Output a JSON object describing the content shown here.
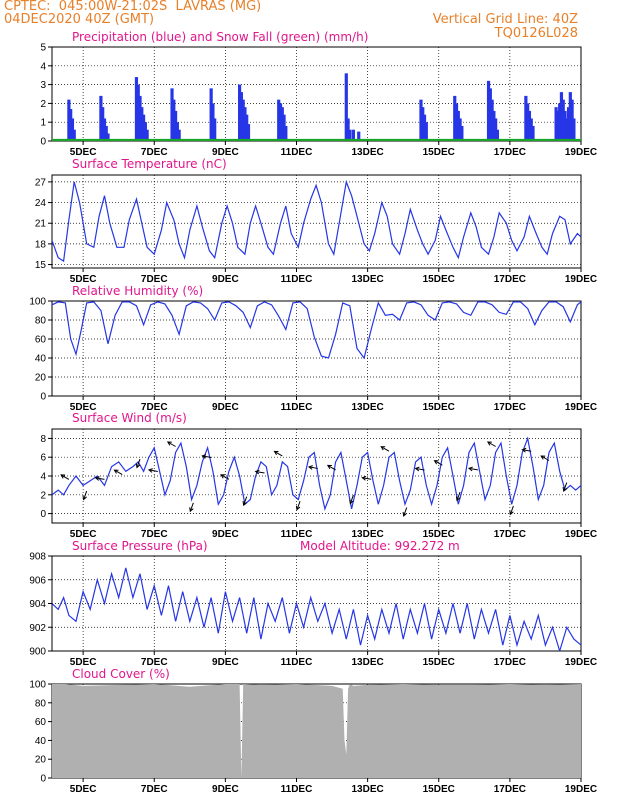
{
  "header": {
    "line1": "CPTEC:  045:00W-21:02S  LAVRAS (MG)",
    "line2": "04DEC2020 40Z (GMT)",
    "right1": "Vertical Grid Line: 40Z",
    "right2": "TQ0126L028"
  },
  "colors": {
    "header_text": "#e8802a",
    "panel_title": "#e0168c",
    "series_line": "#2636e6",
    "precip_bar": "#2636e6",
    "snow_line": "#19a628",
    "cloud_fill": "#b0b0b0",
    "grid": "#000000"
  },
  "x_axis": {
    "start_day": 4,
    "start_hour": 3,
    "end_day": 19,
    "end_hour": 0,
    "tick_labels": [
      "5DEC",
      "7DEC",
      "9DEC",
      "11DEC",
      "13DEC",
      "15DEC",
      "17DEC",
      "19DEC"
    ],
    "tick_days": [
      5,
      7,
      9,
      11,
      13,
      15,
      17,
      19
    ]
  },
  "chart_data": [
    {
      "type": "bar",
      "name": "precipitation",
      "title": "Precipitation (blue) and Snow Fall (green) (mm/h)",
      "ylim": [
        0,
        5
      ],
      "yticks": [
        0,
        1,
        2,
        3,
        4,
        5
      ],
      "grid": true,
      "x_unit": "day of December 2020 (decimal)",
      "series": [
        {
          "name": "Precipitation",
          "x": [
            4.6,
            4.65,
            4.7,
            4.75,
            5.5,
            5.55,
            5.6,
            5.65,
            5.7,
            6.5,
            6.55,
            6.6,
            6.65,
            6.7,
            6.75,
            6.8,
            7.5,
            7.55,
            7.6,
            7.65,
            7.7,
            8.6,
            8.65,
            8.7,
            9.4,
            9.45,
            9.5,
            9.55,
            9.6,
            9.65,
            10.5,
            10.55,
            10.6,
            10.65,
            10.7,
            12.4,
            12.45,
            12.5,
            12.6,
            12.75,
            14.5,
            14.55,
            14.6,
            14.65,
            15.45,
            15.5,
            15.55,
            15.6,
            15.65,
            16.4,
            16.45,
            16.5,
            16.55,
            16.6,
            16.65,
            17.45,
            17.5,
            17.55,
            17.6,
            17.65,
            18.3,
            18.35,
            18.4,
            18.45,
            18.5,
            18.55,
            18.6,
            18.65,
            18.7,
            18.75,
            18.8
          ],
          "values": [
            2.2,
            1.7,
            1.2,
            0.6,
            2.4,
            1.8,
            1.2,
            0.8,
            0.4,
            3.4,
            3.0,
            2.4,
            1.8,
            1.4,
            1.0,
            0.6,
            2.8,
            2.2,
            1.6,
            1.0,
            0.6,
            2.8,
            2.0,
            1.2,
            3.0,
            2.6,
            2.2,
            1.8,
            1.4,
            0.9,
            2.2,
            2.0,
            1.8,
            1.4,
            0.8,
            3.6,
            1.2,
            0.6,
            0.6,
            0.5,
            2.2,
            1.8,
            1.4,
            1.0,
            2.4,
            2.0,
            1.6,
            1.2,
            0.8,
            3.2,
            2.8,
            2.2,
            1.6,
            1.2,
            0.6,
            2.4,
            2.0,
            1.6,
            1.2,
            0.8,
            1.8,
            1.6,
            2.0,
            2.6,
            2.2,
            1.6,
            1.2,
            1.8,
            2.6,
            2.2,
            1.2
          ]
        },
        {
          "name": "Snow Fall",
          "x": [
            4.125,
            19.0
          ],
          "values": [
            0,
            0
          ]
        }
      ]
    },
    {
      "type": "line",
      "name": "surface-temperature",
      "title": "Surface Temperature (nC)",
      "ylim": [
        14.5,
        28
      ],
      "yticks": [
        15,
        18,
        21,
        24,
        27
      ],
      "grid": true,
      "x_unit": "day of December 2020 (decimal)",
      "series": [
        {
          "name": "Temperature",
          "x": [
            4.125,
            4.3,
            4.45,
            4.6,
            4.75,
            4.9,
            5.1,
            5.3,
            5.45,
            5.6,
            5.75,
            5.95,
            6.15,
            6.3,
            6.5,
            6.65,
            6.8,
            7.0,
            7.2,
            7.35,
            7.55,
            7.7,
            7.85,
            8.0,
            8.2,
            8.35,
            8.55,
            8.7,
            8.9,
            9.05,
            9.2,
            9.35,
            9.55,
            9.7,
            9.85,
            10.0,
            10.2,
            10.35,
            10.55,
            10.7,
            10.85,
            11.05,
            11.2,
            11.4,
            11.55,
            11.7,
            11.9,
            12.05,
            12.2,
            12.4,
            12.55,
            12.7,
            12.9,
            13.05,
            13.2,
            13.4,
            13.55,
            13.7,
            13.9,
            14.05,
            14.2,
            14.4,
            14.55,
            14.7,
            14.9,
            15.05,
            15.2,
            15.4,
            15.55,
            15.7,
            15.9,
            16.05,
            16.2,
            16.4,
            16.55,
            16.7,
            16.9,
            17.05,
            17.2,
            17.4,
            17.55,
            17.7,
            17.9,
            18.05,
            18.2,
            18.4,
            18.55,
            18.7,
            18.9,
            19.0
          ],
          "values": [
            18.5,
            16.0,
            15.5,
            21.5,
            27.0,
            24.0,
            18.0,
            17.5,
            22.0,
            25.0,
            21.0,
            17.5,
            17.5,
            21.5,
            24.5,
            21.0,
            17.5,
            16.5,
            20.0,
            24.0,
            21.5,
            18.0,
            16.0,
            20.0,
            23.5,
            20.5,
            17.0,
            16.0,
            21.0,
            23.5,
            21.0,
            17.5,
            16.5,
            21.0,
            23.5,
            21.0,
            17.5,
            16.5,
            21.0,
            23.5,
            19.5,
            17.5,
            21.0,
            24.5,
            26.5,
            24.0,
            18.0,
            16.5,
            21.0,
            27.0,
            25.0,
            22.0,
            18.0,
            17.0,
            19.5,
            24.0,
            22.0,
            18.0,
            16.5,
            19.5,
            23.0,
            20.0,
            18.0,
            16.5,
            18.5,
            22.0,
            20.0,
            17.5,
            16.0,
            19.0,
            22.5,
            20.5,
            17.5,
            16.5,
            19.0,
            22.5,
            21.0,
            18.5,
            17.0,
            19.0,
            22.0,
            20.0,
            17.5,
            16.5,
            19.5,
            22.0,
            21.5,
            18.0,
            19.5,
            19.0
          ]
        }
      ]
    },
    {
      "type": "line",
      "name": "relative-humidity",
      "title": "Relative Humidity (%)",
      "ylim": [
        0,
        100
      ],
      "yticks": [
        0,
        20,
        40,
        60,
        80,
        100
      ],
      "grid": true,
      "x_unit": "day of December 2020 (decimal)",
      "series": [
        {
          "name": "Relative Humidity",
          "x": [
            4.125,
            4.3,
            4.5,
            4.65,
            4.8,
            4.95,
            5.1,
            5.3,
            5.5,
            5.7,
            5.9,
            6.1,
            6.3,
            6.5,
            6.7,
            6.9,
            7.1,
            7.3,
            7.5,
            7.7,
            7.9,
            8.1,
            8.3,
            8.5,
            8.7,
            8.9,
            9.1,
            9.3,
            9.5,
            9.7,
            9.9,
            10.1,
            10.3,
            10.5,
            10.7,
            10.9,
            11.1,
            11.3,
            11.5,
            11.7,
            11.9,
            12.1,
            12.3,
            12.5,
            12.7,
            12.9,
            13.1,
            13.3,
            13.5,
            13.7,
            13.9,
            14.1,
            14.3,
            14.5,
            14.7,
            14.9,
            15.1,
            15.3,
            15.5,
            15.7,
            15.9,
            16.1,
            16.3,
            16.5,
            16.7,
            16.9,
            17.1,
            17.3,
            17.5,
            17.7,
            17.9,
            18.1,
            18.3,
            18.5,
            18.7,
            18.9,
            19.0
          ],
          "values": [
            96,
            99,
            98,
            60,
            44,
            70,
            98,
            99,
            90,
            55,
            85,
            99,
            99,
            95,
            75,
            96,
            99,
            97,
            85,
            65,
            95,
            99,
            98,
            92,
            80,
            98,
            99,
            95,
            88,
            72,
            95,
            99,
            96,
            84,
            70,
            98,
            99,
            92,
            62,
            42,
            40,
            65,
            98,
            95,
            50,
            40,
            70,
            98,
            85,
            86,
            80,
            98,
            99,
            96,
            85,
            80,
            98,
            99,
            97,
            88,
            85,
            99,
            99,
            96,
            88,
            86,
            99,
            99,
            92,
            75,
            90,
            99,
            99,
            94,
            78,
            96,
            99
          ]
        }
      ]
    },
    {
      "type": "line",
      "name": "surface-wind",
      "title": "Surface Wind (m/s)",
      "ylim": [
        -1,
        9
      ],
      "yticks": [
        0,
        2,
        4,
        6,
        8
      ],
      "grid": true,
      "x_unit": "day of December 2020 (decimal)",
      "series": [
        {
          "name": "Wind speed",
          "x": [
            4.125,
            4.3,
            4.45,
            4.6,
            4.8,
            5.0,
            5.2,
            5.4,
            5.6,
            5.8,
            6.0,
            6.2,
            6.4,
            6.55,
            6.7,
            6.85,
            7.0,
            7.15,
            7.3,
            7.45,
            7.6,
            7.75,
            7.9,
            8.05,
            8.2,
            8.35,
            8.5,
            8.65,
            8.8,
            8.95,
            9.1,
            9.25,
            9.4,
            9.55,
            9.7,
            9.85,
            10.0,
            10.15,
            10.3,
            10.45,
            10.6,
            10.75,
            10.9,
            11.05,
            11.2,
            11.35,
            11.5,
            11.65,
            11.8,
            11.95,
            12.1,
            12.25,
            12.4,
            12.55,
            12.7,
            12.85,
            13.0,
            13.15,
            13.3,
            13.45,
            13.6,
            13.75,
            13.9,
            14.05,
            14.2,
            14.35,
            14.5,
            14.65,
            14.8,
            14.95,
            15.1,
            15.25,
            15.4,
            15.55,
            15.7,
            15.85,
            16.0,
            16.15,
            16.3,
            16.45,
            16.6,
            16.75,
            16.9,
            17.05,
            17.2,
            17.35,
            17.5,
            17.65,
            17.8,
            17.95,
            18.1,
            18.25,
            18.4,
            18.55,
            18.7,
            18.85,
            19.0
          ],
          "values": [
            2.0,
            2.5,
            2.0,
            3.0,
            4.0,
            3.0,
            3.5,
            4.0,
            3.0,
            5.0,
            5.5,
            4.5,
            5.0,
            5.5,
            4.5,
            6.0,
            7.0,
            4.5,
            2.0,
            3.5,
            6.5,
            7.5,
            5.0,
            1.5,
            3.0,
            5.5,
            7.0,
            4.5,
            1.0,
            2.0,
            4.5,
            6.0,
            4.0,
            1.0,
            1.5,
            4.0,
            5.5,
            5.0,
            2.0,
            3.0,
            5.5,
            5.0,
            2.0,
            1.5,
            3.5,
            6.0,
            6.5,
            3.0,
            0.5,
            2.0,
            5.5,
            6.5,
            3.5,
            0.5,
            3.0,
            6.0,
            6.5,
            3.5,
            1.0,
            3.0,
            6.0,
            6.5,
            3.5,
            1.0,
            2.5,
            5.5,
            6.0,
            3.0,
            1.0,
            3.0,
            6.0,
            7.0,
            4.0,
            1.0,
            3.0,
            6.5,
            7.5,
            4.5,
            1.5,
            3.0,
            6.5,
            7.5,
            4.0,
            1.0,
            3.0,
            6.5,
            8.0,
            5.0,
            1.5,
            3.0,
            6.5,
            7.5,
            4.5,
            2.5,
            3.0,
            2.5,
            3.0
          ]
        }
      ]
    },
    {
      "type": "line",
      "name": "surface-pressure",
      "title": "Surface Pressure (hPa)",
      "annotation": "Model Altitude: 992.272 m",
      "ylim": [
        900,
        908
      ],
      "yticks": [
        900,
        902,
        904,
        906,
        908
      ],
      "grid": true,
      "x_unit": "day of December 2020 (decimal)",
      "series": [
        {
          "name": "Surface Pressure",
          "x": [
            4.125,
            4.3,
            4.45,
            4.6,
            4.8,
            5.0,
            5.2,
            5.4,
            5.6,
            5.8,
            6.0,
            6.2,
            6.4,
            6.6,
            6.8,
            7.0,
            7.2,
            7.4,
            7.6,
            7.8,
            8.0,
            8.2,
            8.4,
            8.6,
            8.8,
            9.0,
            9.2,
            9.4,
            9.6,
            9.8,
            10.0,
            10.2,
            10.4,
            10.6,
            10.8,
            11.0,
            11.2,
            11.4,
            11.6,
            11.8,
            12.0,
            12.2,
            12.4,
            12.6,
            12.8,
            13.0,
            13.2,
            13.4,
            13.6,
            13.8,
            14.0,
            14.2,
            14.4,
            14.6,
            14.8,
            15.0,
            15.2,
            15.4,
            15.6,
            15.8,
            16.0,
            16.2,
            16.4,
            16.6,
            16.8,
            17.0,
            17.2,
            17.4,
            17.6,
            17.8,
            18.0,
            18.2,
            18.4,
            18.6,
            18.8,
            19.0
          ],
          "values": [
            904.0,
            903.5,
            904.5,
            903.0,
            902.5,
            905.0,
            903.5,
            906.0,
            904.0,
            906.5,
            904.5,
            907.0,
            904.5,
            906.5,
            903.5,
            905.5,
            903.0,
            905.5,
            902.5,
            905.0,
            902.5,
            904.5,
            902.0,
            904.5,
            901.5,
            905.0,
            902.5,
            904.5,
            901.5,
            904.5,
            901.0,
            904.0,
            902.5,
            904.5,
            901.5,
            904.0,
            902.0,
            904.5,
            902.5,
            904.0,
            901.5,
            903.5,
            901.0,
            903.5,
            900.5,
            903.0,
            901.0,
            903.5,
            901.5,
            904.0,
            901.0,
            903.5,
            901.5,
            904.0,
            901.0,
            903.5,
            901.5,
            904.0,
            901.5,
            904.0,
            901.0,
            903.5,
            901.5,
            903.5,
            900.5,
            903.0,
            900.5,
            902.5,
            901.0,
            903.0,
            900.5,
            902.0,
            900.0,
            902.0,
            901.0,
            900.5
          ]
        }
      ]
    },
    {
      "type": "area",
      "name": "cloud-cover",
      "title": "Cloud Cover (%)",
      "ylim": [
        0,
        100
      ],
      "yticks": [
        0,
        20,
        40,
        60,
        80,
        100
      ],
      "grid": true,
      "x_unit": "day of December 2020 (decimal)",
      "series": [
        {
          "name": "Cloud Cover",
          "x": [
            4.125,
            4.5,
            5.0,
            6.0,
            7.0,
            8.0,
            9.0,
            9.4,
            9.45,
            9.5,
            10.0,
            11.0,
            12.0,
            12.3,
            12.35,
            12.4,
            12.45,
            12.5,
            12.55,
            12.6,
            13.0,
            14.0,
            15.0,
            16.0,
            17.0,
            18.0,
            19.0
          ],
          "values": [
            100,
            100,
            98,
            99,
            100,
            97,
            100,
            100,
            0,
            100,
            99,
            100,
            98,
            95,
            40,
            25,
            95,
            100,
            99,
            98,
            99,
            100,
            99,
            99,
            100,
            99,
            100
          ]
        }
      ]
    }
  ]
}
